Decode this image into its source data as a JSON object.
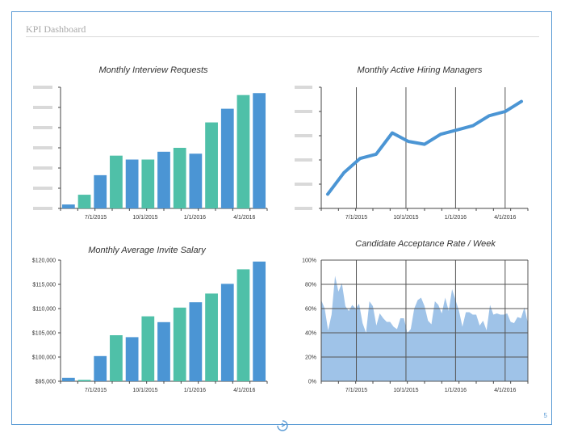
{
  "page": {
    "title": "KPI Dashboard",
    "page_number": "5"
  },
  "colors": {
    "blue": "#4b95d4",
    "teal": "#4fc0a8",
    "line": "#4b95d4",
    "area": "#9fc3e8",
    "axis": "#444444",
    "grid": "#555555",
    "placeholder": "#d9d9d9",
    "frame": "#5b9bd5"
  },
  "chart_data": [
    {
      "type": "bar",
      "title": "Monthly Interview Requests",
      "x_tick_labels": [
        "7/1/2015",
        "10/1/2015",
        "1/1/2016",
        "4/1/2016"
      ],
      "y_axis_labels_shown": false,
      "values": [
        2,
        7,
        17,
        27,
        25,
        25,
        29,
        31,
        28,
        44,
        51,
        58,
        59
      ],
      "bar_colors": [
        "blue",
        "teal",
        "blue",
        "teal",
        "blue",
        "teal",
        "blue",
        "teal",
        "blue",
        "teal",
        "blue",
        "teal",
        "blue"
      ],
      "ylim": [
        0,
        62
      ]
    },
    {
      "type": "line",
      "title": "Monthly Active Hiring Managers",
      "x_tick_labels": [
        "7/1/2015",
        "10/1/2015",
        "1/1/2016",
        "4/1/2016"
      ],
      "y_axis_labels_shown": false,
      "values": [
        10,
        25,
        35,
        38,
        53,
        47,
        45,
        52,
        55,
        58,
        65,
        68,
        75
      ],
      "ylim": [
        0,
        85
      ],
      "vertical_gridlines": true
    },
    {
      "type": "bar",
      "title": "Monthly Average Invite Salary",
      "y_tick_labels": [
        "$95,000",
        "$100,000",
        "$105,000",
        "$110,000",
        "$115,000",
        "$120,000"
      ],
      "x_tick_labels": [
        "7/1/2015",
        "10/1/2015",
        "1/1/2016",
        "4/1/2016"
      ],
      "values": [
        95700,
        95300,
        100200,
        104500,
        104100,
        108400,
        107200,
        110200,
        111300,
        113100,
        115100,
        118100,
        119700
      ],
      "bar_colors": [
        "blue",
        "teal",
        "blue",
        "teal",
        "blue",
        "teal",
        "blue",
        "teal",
        "blue",
        "teal",
        "blue",
        "teal",
        "blue"
      ],
      "ylim": [
        95000,
        120000
      ]
    },
    {
      "type": "area",
      "title": "Candidate Acceptance Rate / Week",
      "y_tick_labels": [
        "0%",
        "20%",
        "40%",
        "60%",
        "80%",
        "100%"
      ],
      "x_tick_labels": [
        "7/1/2015",
        "10/1/2015",
        "1/1/2016",
        "4/1/2016"
      ],
      "values": [
        67,
        60,
        42,
        55,
        87,
        74,
        81,
        62,
        58,
        63,
        60,
        64,
        48,
        40,
        66,
        62,
        46,
        56,
        52,
        49,
        49,
        45,
        43,
        52,
        52,
        40,
        43,
        60,
        67,
        69,
        62,
        50,
        47,
        66,
        63,
        56,
        69,
        58,
        76,
        67,
        58,
        45,
        57,
        57,
        55,
        55,
        46,
        50,
        42,
        63,
        55,
        56,
        55,
        55,
        56,
        49,
        48,
        53,
        52,
        61,
        48
      ],
      "ylim": [
        0,
        100
      ]
    }
  ]
}
